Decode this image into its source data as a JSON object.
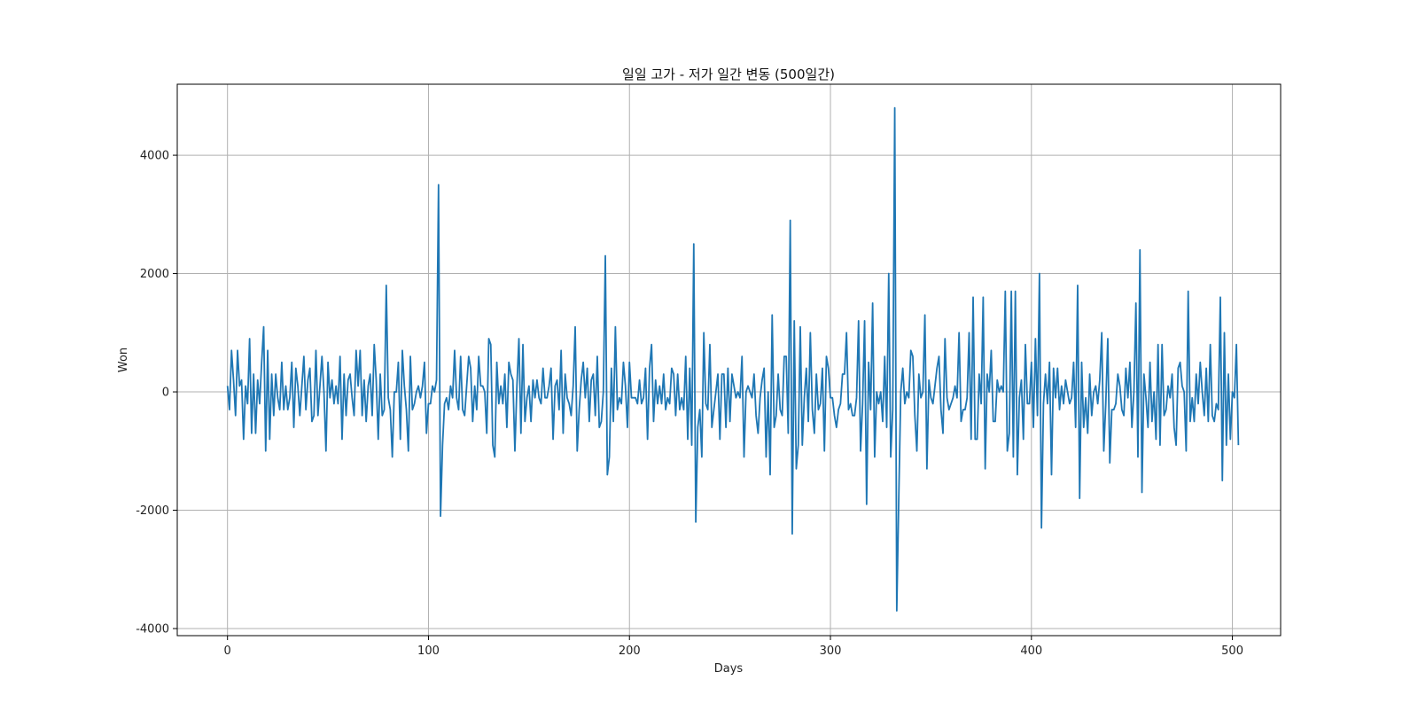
{
  "chart_data": {
    "type": "line",
    "title": "일일 고가 - 저가 일간 변동 (500일간)",
    "xlabel": "Days",
    "ylabel": "Won",
    "xlim": [
      -25,
      524
    ],
    "ylim": [
      -4120,
      5200
    ],
    "grid": true,
    "xticks": [
      0,
      100,
      200,
      300,
      400,
      500
    ],
    "yticks": [
      -4000,
      -2000,
      0,
      2000,
      4000
    ],
    "series": [
      {
        "name": "",
        "color": "#1f77b4",
        "x_start": 0,
        "values": [
          100,
          -300,
          700,
          200,
          -400,
          700,
          100,
          200,
          -800,
          100,
          -200,
          900,
          -700,
          300,
          -700,
          200,
          -200,
          500,
          1100,
          -1000,
          700,
          -800,
          300,
          -400,
          300,
          -100,
          -300,
          500,
          -300,
          100,
          -300,
          -100,
          500,
          -600,
          400,
          100,
          -400,
          100,
          600,
          -300,
          200,
          400,
          -500,
          -400,
          700,
          -400,
          100,
          600,
          0,
          -1000,
          500,
          -100,
          200,
          -200,
          100,
          -200,
          600,
          -800,
          300,
          -400,
          200,
          300,
          -100,
          -400,
          700,
          100,
          700,
          -400,
          200,
          -500,
          100,
          300,
          -400,
          800,
          200,
          -800,
          300,
          -400,
          -300,
          1800,
          -100,
          -300,
          -1100,
          0,
          0,
          500,
          -800,
          700,
          100,
          -300,
          -1000,
          600,
          -300,
          -200,
          0,
          100,
          -100,
          100,
          500,
          -700,
          -200,
          -200,
          100,
          0,
          200,
          3500,
          -2100,
          -900,
          -200,
          -100,
          -300,
          100,
          -100,
          700,
          -100,
          -300,
          600,
          -300,
          -400,
          100,
          600,
          400,
          -500,
          100,
          -300,
          600,
          100,
          100,
          0,
          -700,
          900,
          800,
          -900,
          -1100,
          500,
          -200,
          100,
          -200,
          300,
          -600,
          500,
          300,
          200,
          -1000,
          100,
          900,
          -700,
          800,
          -500,
          -100,
          100,
          -500,
          200,
          -100,
          200,
          -100,
          -200,
          400,
          -100,
          -100,
          100,
          400,
          -800,
          100,
          200,
          -300,
          700,
          -700,
          300,
          -100,
          -200,
          -400,
          100,
          1100,
          -1000,
          -300,
          200,
          500,
          -100,
          400,
          -500,
          200,
          300,
          -400,
          600,
          -600,
          -500,
          0,
          2300,
          -1400,
          -1100,
          400,
          -500,
          1100,
          -300,
          -100,
          -200,
          500,
          100,
          -600,
          500,
          -100,
          -100,
          -100,
          -200,
          200,
          -200,
          -100,
          400,
          -800,
          400,
          800,
          -500,
          200,
          -200,
          100,
          -200,
          300,
          -300,
          -100,
          -200,
          400,
          300,
          -400,
          300,
          -300,
          -100,
          -300,
          600,
          -800,
          400,
          -900,
          2500,
          -2200,
          -600,
          -300,
          -1100,
          1000,
          -200,
          -300,
          800,
          -600,
          -300,
          0,
          300,
          -800,
          300,
          300,
          -600,
          400,
          -500,
          300,
          100,
          -100,
          0,
          -100,
          600,
          -1100,
          0,
          100,
          0,
          -100,
          300,
          -400,
          -700,
          -100,
          200,
          400,
          -1100,
          0,
          -1400,
          1300,
          -600,
          -400,
          300,
          -300,
          -400,
          600,
          600,
          -700,
          2900,
          -2400,
          1200,
          -1300,
          -900,
          1100,
          -900,
          -100,
          400,
          -500,
          1000,
          -300,
          -700,
          300,
          -300,
          -200,
          400,
          -1000,
          600,
          400,
          -100,
          -100,
          -400,
          -600,
          -300,
          -200,
          300,
          300,
          1000,
          -300,
          -200,
          -400,
          -400,
          -100,
          1200,
          -1000,
          -200,
          1200,
          -1900,
          500,
          -300,
          1500,
          -1100,
          0,
          -200,
          0,
          -500,
          600,
          -600,
          2000,
          -1100,
          -300,
          4800,
          -3700,
          -1800,
          0,
          400,
          -200,
          0,
          -100,
          700,
          600,
          -400,
          -1000,
          300,
          -100,
          0,
          1300,
          -1300,
          200,
          -100,
          -200,
          100,
          400,
          600,
          -300,
          -700,
          900,
          -100,
          -300,
          -200,
          -100,
          100,
          -100,
          1000,
          -500,
          -300,
          -300,
          -100,
          1000,
          -800,
          1600,
          -800,
          -800,
          300,
          -200,
          1600,
          -1300,
          300,
          0,
          700,
          -500,
          -500,
          200,
          0,
          100,
          0,
          1700,
          -1000,
          -700,
          1700,
          -1100,
          1700,
          -1400,
          -100,
          200,
          -800,
          800,
          -200,
          -200,
          500,
          -600,
          900,
          -400,
          2000,
          -2300,
          -200,
          300,
          -200,
          500,
          -1400,
          400,
          -100,
          400,
          -300,
          100,
          -200,
          200,
          0,
          -200,
          -100,
          500,
          -600,
          1800,
          -1800,
          500,
          -600,
          -100,
          -700,
          300,
          -400,
          0,
          100,
          -200,
          200,
          1000,
          -1000,
          -200,
          900,
          -1200,
          -300,
          -300,
          -200,
          300,
          100,
          -300,
          -400,
          400,
          -100,
          500,
          -600,
          0,
          1500,
          -1100,
          2400,
          -1700,
          300,
          -100,
          -600,
          500,
          -500,
          0,
          -800,
          800,
          -900,
          800,
          -400,
          -300,
          100,
          -100,
          300,
          -600,
          -900,
          400,
          500,
          100,
          0,
          -1000,
          1700,
          -500,
          -100,
          -500,
          300,
          -200,
          500,
          0,
          -400,
          400,
          -500,
          800,
          -400,
          -500,
          -200,
          -300,
          1600,
          -1500,
          1000,
          -900,
          300,
          -800,
          0,
          -100,
          800,
          -900
        ]
      }
    ]
  }
}
